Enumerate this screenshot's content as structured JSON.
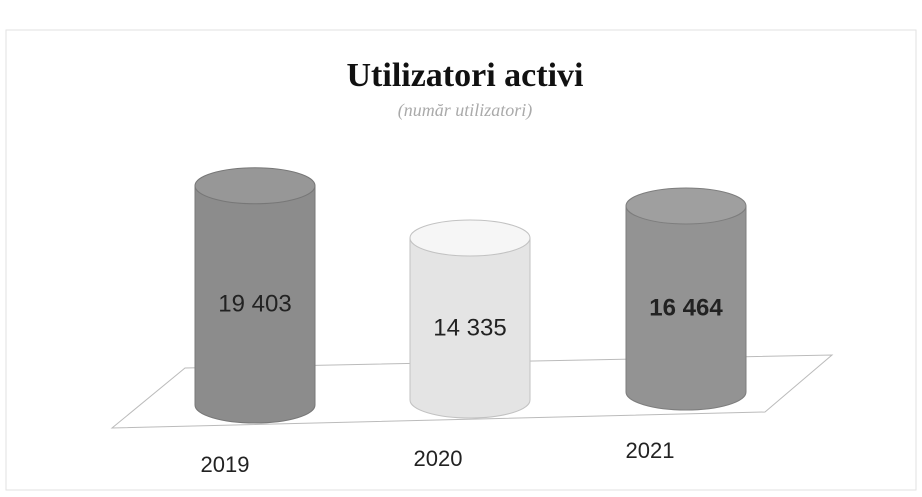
{
  "chart_data": {
    "type": "bar3d",
    "title": "Utilizatori activi",
    "subtitle": "(număr utilizatori)",
    "categories": [
      "2019",
      "2020",
      "2021"
    ],
    "values": [
      19403,
      14335,
      16464
    ],
    "value_labels": [
      "19 403",
      "14 335",
      "16 464"
    ],
    "colors": [
      "#8c8c8c",
      "#e4e4e4",
      "#939393"
    ]
  }
}
